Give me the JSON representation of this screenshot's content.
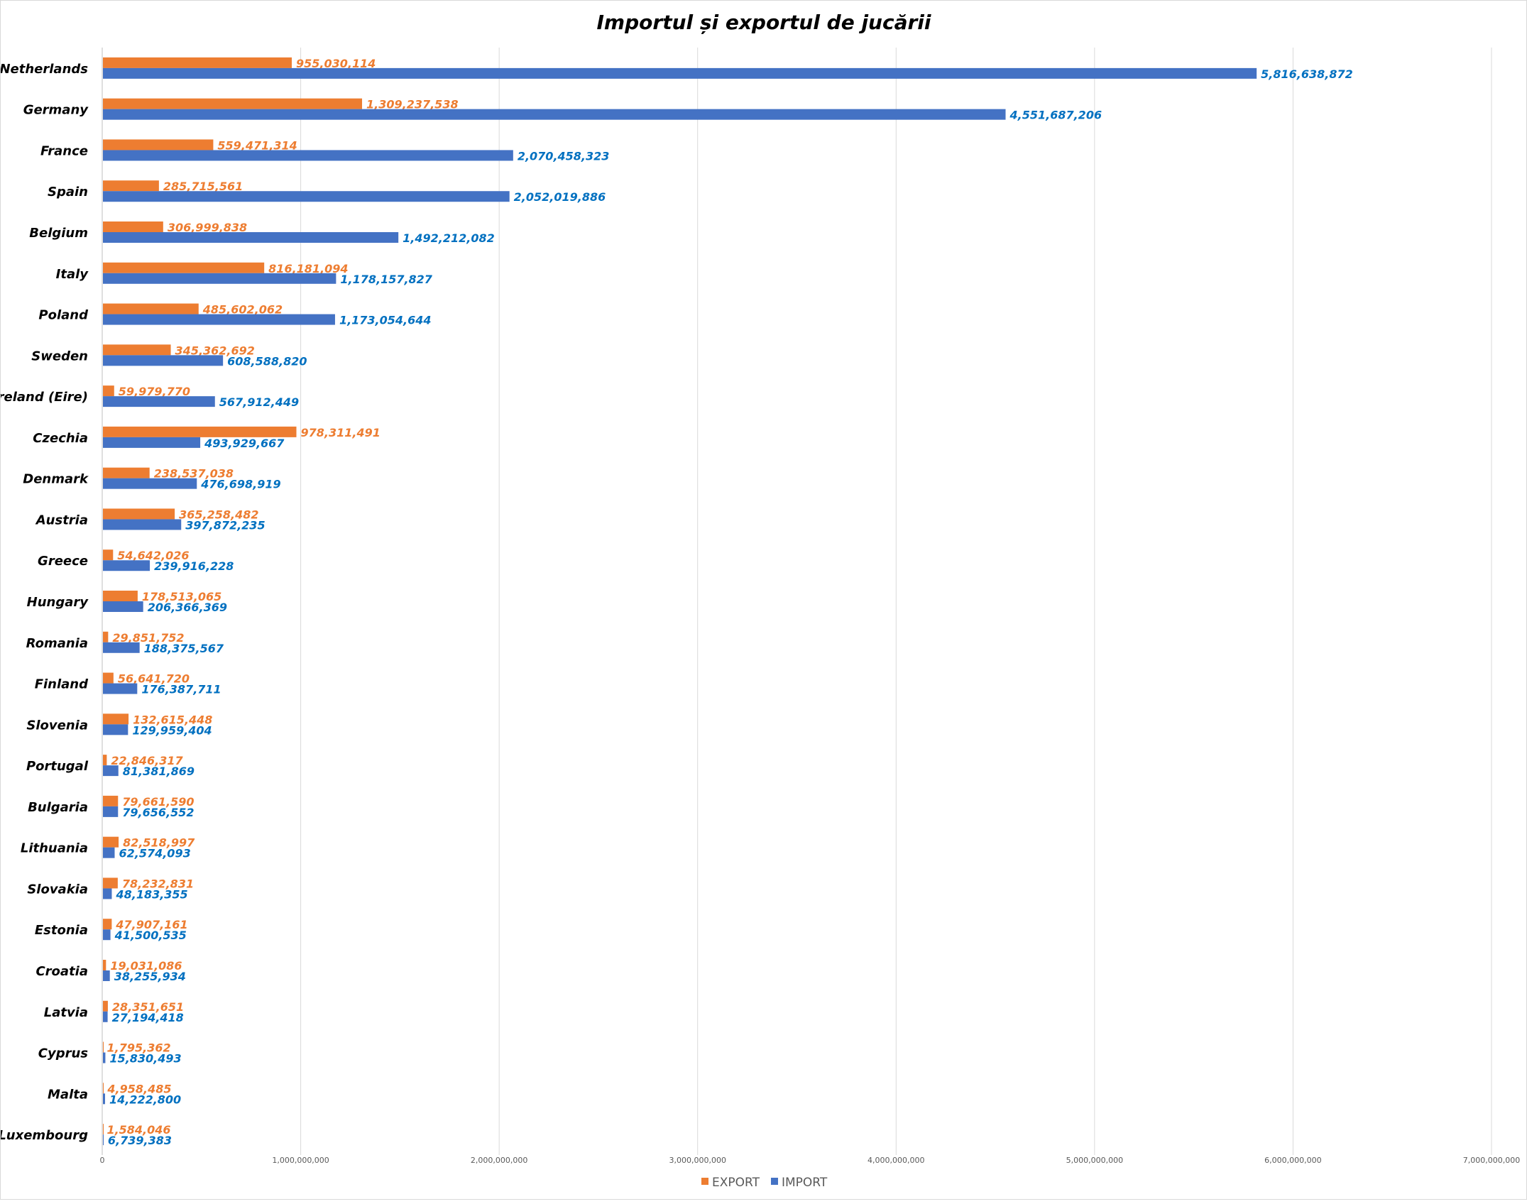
{
  "chart_data": {
    "type": "bar",
    "orientation": "horizontal",
    "title": "Importul și exportul de jucării",
    "categories": [
      "Netherlands",
      "Germany",
      "France",
      "Spain",
      "Belgium",
      "Italy",
      "Poland",
      "Sweden",
      "Ireland (Eire)",
      "Czechia",
      "Denmark",
      "Austria",
      "Greece",
      "Hungary",
      "Romania",
      "Finland",
      "Slovenia",
      "Portugal",
      "Bulgaria",
      "Lithuania",
      "Slovakia",
      "Estonia",
      "Croatia",
      "Latvia",
      "Cyprus",
      "Malta",
      "Luxembourg"
    ],
    "series": [
      {
        "name": "EXPORT",
        "color": "#ED7D31",
        "label_color": "#ED7D31",
        "values": [
          955030114,
          1309237538,
          559471314,
          285715561,
          306999838,
          816181094,
          485602062,
          345362692,
          59979770,
          978311491,
          238537038,
          365258482,
          54642026,
          178513065,
          29851752,
          56641720,
          132615448,
          22846317,
          79661590,
          82518997,
          78232831,
          47907161,
          19031086,
          28351651,
          1795362,
          4958485,
          1584046
        ]
      },
      {
        "name": "IMPORT",
        "color": "#4472C4",
        "label_color": "#0070C0",
        "values": [
          5816638872,
          4551687206,
          2070458323,
          2052019886,
          1492212082,
          1178157827,
          1173054644,
          608588820,
          567912449,
          493929667,
          476698919,
          397872235,
          239916228,
          206366369,
          188375567,
          176387711,
          129959404,
          81381869,
          79656552,
          62574093,
          48183355,
          41500535,
          38255934,
          27194418,
          15830493,
          14222800,
          6739383
        ]
      }
    ],
    "xlim": [
      0,
      7000000000
    ],
    "xticks": [
      "0",
      "1,000,000,000",
      "2,000,000,000",
      "3,000,000,000",
      "4,000,000,000",
      "5,000,000,000",
      "6,000,000,000",
      "7,000,000,000"
    ],
    "grid": true,
    "data_labels": true,
    "legend_position": "bottom"
  }
}
